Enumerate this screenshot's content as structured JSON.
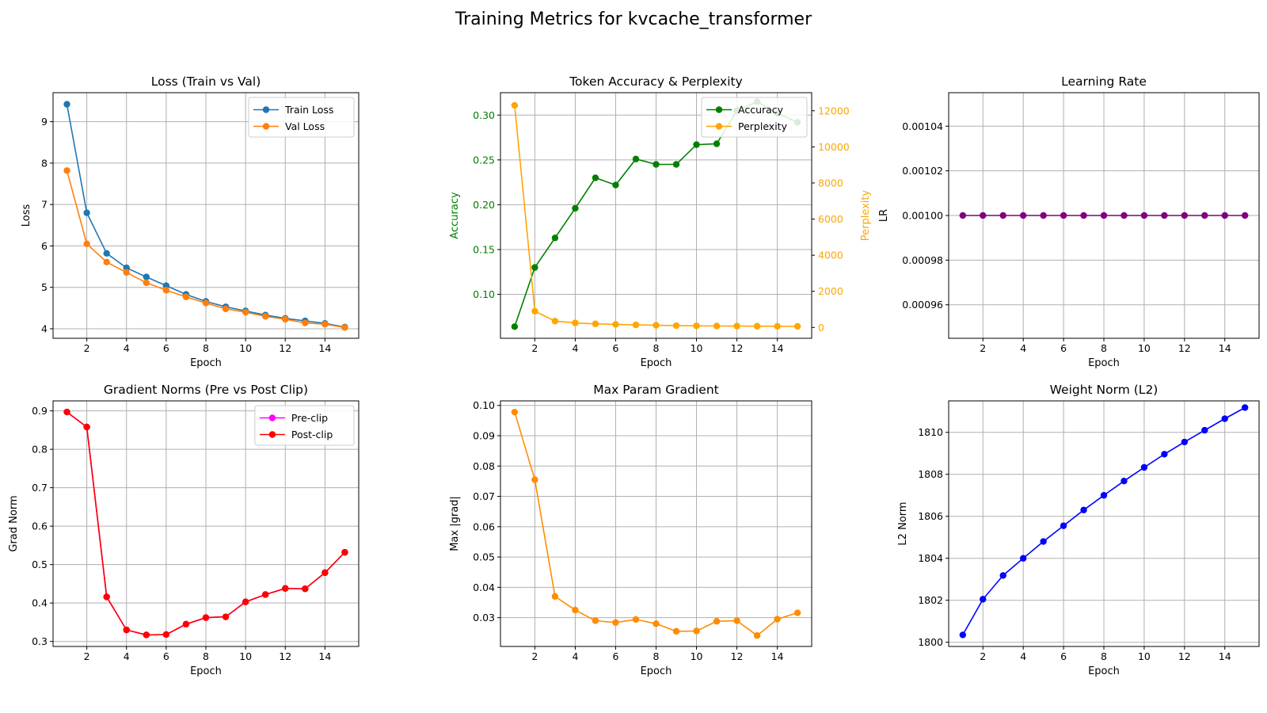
{
  "title": "Training Metrics for kvcache_transformer",
  "chart_data": [
    {
      "id": "loss",
      "type": "line",
      "title": "Loss (Train vs Val)",
      "xlabel": "Epoch",
      "ylabel": "Loss",
      "xlim": [
        0.3,
        15.7
      ],
      "ylim": [
        3.77,
        9.7
      ],
      "xticks": [
        2,
        4,
        6,
        8,
        10,
        12,
        14
      ],
      "yticks": [
        4,
        5,
        6,
        7,
        8,
        9
      ],
      "ytick_labels": [
        "4",
        "5",
        "6",
        "7",
        "8",
        "9"
      ],
      "grid": true,
      "legend": "top-right",
      "x": [
        1,
        2,
        3,
        4,
        5,
        6,
        7,
        8,
        9,
        10,
        11,
        12,
        13,
        14,
        15
      ],
      "series": [
        {
          "name": "Train Loss",
          "color": "#1f77b4",
          "axis": "left",
          "values": [
            9.42,
            6.8,
            5.82,
            5.47,
            5.25,
            5.04,
            4.83,
            4.66,
            4.53,
            4.43,
            4.33,
            4.25,
            4.19,
            4.13,
            4.04
          ]
        },
        {
          "name": "Val Loss",
          "color": "#ff7f0e",
          "axis": "left",
          "values": [
            7.82,
            6.05,
            5.61,
            5.36,
            5.11,
            4.93,
            4.77,
            4.62,
            4.48,
            4.4,
            4.3,
            4.23,
            4.14,
            4.11,
            4.03
          ]
        }
      ]
    },
    {
      "id": "accuracy",
      "type": "line",
      "title": "Token Accuracy & Perplexity",
      "xlabel": "Epoch",
      "ylabel": "Accuracy",
      "ylabel_right": "Perplexity",
      "ylabel_color": "#008000",
      "ylabel_right_color": "#ffa500",
      "xlim": [
        0.3,
        15.7
      ],
      "ylim": [
        0.051,
        0.325
      ],
      "ylim_right": [
        -600,
        13000
      ],
      "xticks": [
        2,
        4,
        6,
        8,
        10,
        12,
        14
      ],
      "yticks": [
        0.1,
        0.15,
        0.2,
        0.25,
        0.3
      ],
      "ytick_labels": [
        "0.10",
        "0.15",
        "0.20",
        "0.25",
        "0.30"
      ],
      "yticks_right": [
        0,
        2000,
        4000,
        6000,
        8000,
        10000,
        12000
      ],
      "ytick_labels_right": [
        "0",
        "2000",
        "4000",
        "6000",
        "8000",
        "10000",
        "12000"
      ],
      "grid": true,
      "legend": "top-right",
      "x": [
        1,
        2,
        3,
        4,
        5,
        6,
        7,
        8,
        9,
        10,
        11,
        12,
        13,
        14,
        15
      ],
      "series": [
        {
          "name": "Accuracy",
          "color": "#008000",
          "axis": "left",
          "values": [
            0.064,
            0.13,
            0.163,
            0.196,
            0.23,
            0.222,
            0.251,
            0.245,
            0.245,
            0.267,
            0.268,
            0.305,
            0.315,
            0.302,
            0.292
          ]
        },
        {
          "name": "Perplexity",
          "color": "#ffa500",
          "axis": "right",
          "values": [
            12300,
            900,
            350,
            250,
            200,
            170,
            140,
            120,
            100,
            90,
            80,
            75,
            70,
            65,
            60
          ]
        }
      ]
    },
    {
      "id": "lr",
      "type": "line",
      "title": "Learning Rate",
      "xlabel": "Epoch",
      "ylabel": "LR",
      "xlim": [
        0.3,
        15.7
      ],
      "ylim": [
        0.000945,
        0.001055
      ],
      "xticks": [
        2,
        4,
        6,
        8,
        10,
        12,
        14
      ],
      "yticks": [
        0.00096,
        0.00098,
        0.001,
        0.00102,
        0.00104
      ],
      "ytick_labels": [
        "0.00096",
        "0.00098",
        "0.00100",
        "0.00102",
        "0.00104"
      ],
      "grid": true,
      "x": [
        1,
        2,
        3,
        4,
        5,
        6,
        7,
        8,
        9,
        10,
        11,
        12,
        13,
        14,
        15
      ],
      "series": [
        {
          "color": "#800080",
          "axis": "left",
          "values": [
            0.001,
            0.001,
            0.001,
            0.001,
            0.001,
            0.001,
            0.001,
            0.001,
            0.001,
            0.001,
            0.001,
            0.001,
            0.001,
            0.001,
            0.001
          ]
        }
      ]
    },
    {
      "id": "grad",
      "type": "line",
      "title": "Gradient Norms (Pre vs Post Clip)",
      "xlabel": "Epoch",
      "ylabel": "Grad Norm",
      "xlim": [
        0.3,
        15.7
      ],
      "ylim": [
        0.287,
        0.926
      ],
      "xticks": [
        2,
        4,
        6,
        8,
        10,
        12,
        14
      ],
      "yticks": [
        0.3,
        0.4,
        0.5,
        0.6,
        0.7,
        0.8,
        0.9
      ],
      "ytick_labels": [
        "0.3",
        "0.4",
        "0.5",
        "0.6",
        "0.7",
        "0.8",
        "0.9"
      ],
      "grid": true,
      "legend": "top-right",
      "x": [
        1,
        2,
        3,
        4,
        5,
        6,
        7,
        8,
        9,
        10,
        11,
        12,
        13,
        14,
        15
      ],
      "series": [
        {
          "name": "Pre-clip",
          "color": "#ff00ff",
          "axis": "left",
          "values": [
            0.897,
            0.858,
            0.416,
            0.33,
            0.317,
            0.318,
            0.345,
            0.362,
            0.364,
            0.403,
            0.422,
            0.438,
            0.437,
            0.479,
            0.532
          ]
        },
        {
          "name": "Post-clip",
          "color": "#ff0000",
          "axis": "left",
          "values": [
            0.897,
            0.858,
            0.416,
            0.33,
            0.317,
            0.318,
            0.345,
            0.362,
            0.364,
            0.403,
            0.422,
            0.438,
            0.437,
            0.479,
            0.532
          ]
        }
      ]
    },
    {
      "id": "maxgrad",
      "type": "line",
      "title": "Max Param Gradient",
      "xlabel": "Epoch",
      "ylabel": "Max |grad|",
      "xlim": [
        0.3,
        15.7
      ],
      "ylim": [
        0.0205,
        0.1015
      ],
      "xticks": [
        2,
        4,
        6,
        8,
        10,
        12,
        14
      ],
      "yticks": [
        0.03,
        0.04,
        0.05,
        0.06,
        0.07,
        0.08,
        0.09,
        0.1
      ],
      "ytick_labels": [
        "0.03",
        "0.04",
        "0.05",
        "0.06",
        "0.07",
        "0.08",
        "0.09",
        "0.10"
      ],
      "grid": true,
      "x": [
        1,
        2,
        3,
        4,
        5,
        6,
        7,
        8,
        9,
        10,
        11,
        12,
        13,
        14,
        15
      ],
      "series": [
        {
          "color": "#ff8c00",
          "axis": "left",
          "values": [
            0.0978,
            0.0755,
            0.037,
            0.0325,
            0.029,
            0.0284,
            0.0294,
            0.028,
            0.0255,
            0.0256,
            0.0288,
            0.029,
            0.0241,
            0.0295,
            0.0316
          ]
        }
      ]
    },
    {
      "id": "weight",
      "type": "line",
      "title": "Weight Norm (L2)",
      "xlabel": "Epoch",
      "ylabel": "L2 Norm",
      "xlim": [
        0.3,
        15.7
      ],
      "ylim": [
        1799.8,
        1811.5
      ],
      "xticks": [
        2,
        4,
        6,
        8,
        10,
        12,
        14
      ],
      "yticks": [
        1800,
        1802,
        1804,
        1806,
        1808,
        1810
      ],
      "ytick_labels": [
        "1800",
        "1802",
        "1804",
        "1806",
        "1808",
        "1810"
      ],
      "grid": true,
      "x": [
        1,
        2,
        3,
        4,
        5,
        6,
        7,
        8,
        9,
        10,
        11,
        12,
        13,
        14,
        15
      ],
      "series": [
        {
          "color": "#0000ff",
          "axis": "left",
          "values": [
            1800.35,
            1802.05,
            1803.18,
            1804.0,
            1804.8,
            1805.55,
            1806.3,
            1807.0,
            1807.68,
            1808.33,
            1808.96,
            1809.54,
            1810.1,
            1810.65,
            1811.18
          ]
        }
      ]
    }
  ]
}
